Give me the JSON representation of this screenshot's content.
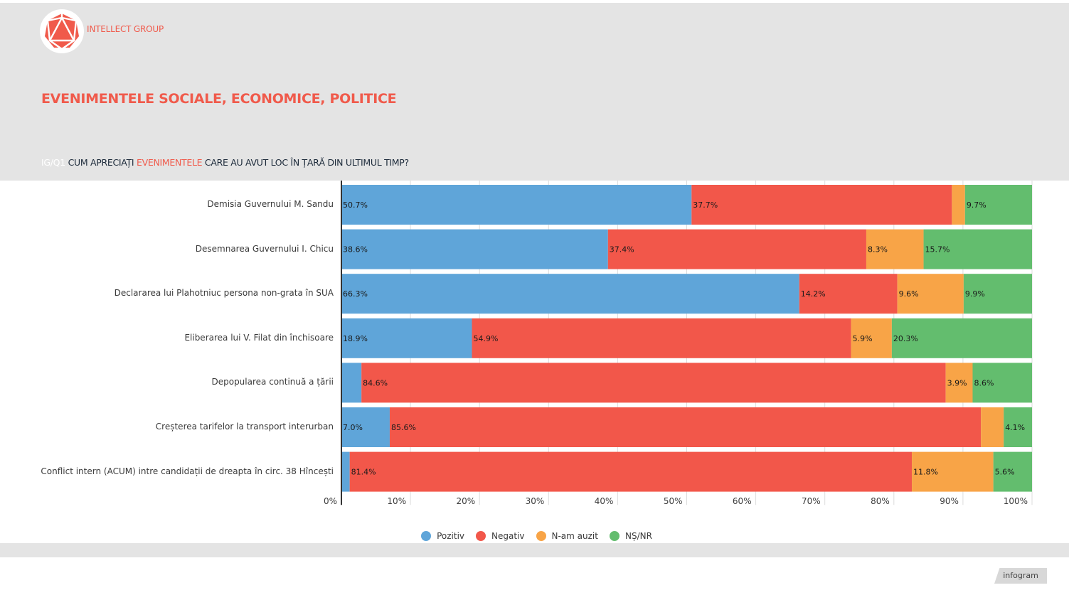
{
  "brand": {
    "name": "INTELLECT GROUP",
    "accent": "#f05a4b"
  },
  "header": {
    "title": "EVENIMENTELE SOCIALE, ECONOMICE, POLITICE",
    "question_code": "IG/Q1",
    "question_part1": "CUM APRECIAȚI",
    "question_highlight": "EVENIMENTELE",
    "question_part2": "CARE AU AVUT LOC ÎN ȚARĂ DIN ULTIMUL TIMP?"
  },
  "footer": {
    "badge": "infogram"
  },
  "chart_data": {
    "type": "bar",
    "orientation": "horizontal",
    "stacked": true,
    "title": "IG/Q1 CUM APRECIAȚI EVENIMENTELE CARE AU AVUT LOC ÎN ȚARĂ DIN ULTIMUL TIMP?",
    "xlabel": "",
    "ylabel": "",
    "xlim": [
      0,
      100
    ],
    "x_ticks": [
      "0%",
      "10%",
      "20%",
      "30%",
      "40%",
      "50%",
      "60%",
      "70%",
      "80%",
      "90%",
      "100%"
    ],
    "grid": true,
    "legend_position": "bottom",
    "categories": [
      "Demisia Guvernului M. Sandu",
      "Desemnarea Guvernului I. Chicu",
      "Declararea lui Plahotniuc persona non-grata în SUA",
      "Eliberarea lui V. Filat din închisoare",
      "Depopularea continuă a țării",
      "Creșterea tarifelor la transport interurban",
      "Conflict intern (ACUM) intre candidații de dreapta în circ. 38 Hîncești"
    ],
    "series": [
      {
        "name": "Pozitiv",
        "color": "#5fa5d9",
        "values": [
          50.7,
          38.6,
          66.3,
          18.9,
          2.9,
          7.0,
          1.2
        ],
        "labels_shown": [
          true,
          true,
          true,
          true,
          false,
          true,
          false
        ]
      },
      {
        "name": "Negativ",
        "color": "#f2574a",
        "values": [
          37.7,
          37.4,
          14.2,
          54.9,
          84.6,
          85.6,
          81.4
        ],
        "labels_shown": [
          true,
          true,
          true,
          true,
          true,
          true,
          true
        ]
      },
      {
        "name": "N-am auzit",
        "color": "#f8a447",
        "values": [
          1.9,
          8.3,
          9.6,
          5.9,
          3.9,
          3.3,
          11.8
        ],
        "labels_shown": [
          false,
          true,
          true,
          true,
          true,
          false,
          true
        ]
      },
      {
        "name": "NȘ/NR",
        "color": "#63bd6e",
        "values": [
          9.7,
          15.7,
          9.9,
          20.3,
          8.6,
          4.1,
          5.6
        ],
        "labels_shown": [
          true,
          true,
          true,
          true,
          true,
          true,
          true
        ]
      }
    ]
  }
}
